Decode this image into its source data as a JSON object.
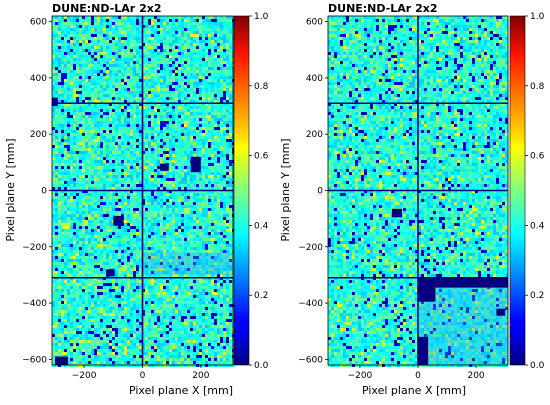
{
  "chart_data": [
    {
      "type": "heatmap",
      "title": "DUNE:ND-LAr 2x2",
      "xlabel": "Pixel plane X [mm]",
      "ylabel": "Pixel plane Y [mm]",
      "xlim": [
        -310,
        310
      ],
      "ylim": [
        -620,
        620
      ],
      "xticks": [
        -200,
        0,
        200
      ],
      "yticks": [
        -600,
        -400,
        -200,
        0,
        200,
        400,
        600
      ],
      "colorbar": {
        "min": 0.0,
        "max": 1.0,
        "ticks": [
          "0.0",
          "0.2",
          "0.4",
          "0.6",
          "0.8",
          "1.0"
        ],
        "colormap": "jet"
      },
      "dividers": {
        "x": [
          0
        ],
        "y": [
          -310,
          0,
          310
        ]
      },
      "inactive_regions": [
        [
          -310,
          -290,
          300,
          330
        ],
        [
          60,
          90,
          70,
          95
        ],
        [
          165,
          200,
          65,
          120
        ],
        [
          -100,
          -65,
          -125,
          -90
        ],
        [
          -125,
          -95,
          -305,
          -280
        ],
        [
          -300,
          -255,
          -620,
          -590
        ]
      ],
      "low_efficiency_regions": [
        [
          0,
          310,
          -300,
          -220
        ]
      ]
    },
    {
      "type": "heatmap",
      "title": "DUNE:ND-LAr 2x2",
      "xlabel": "Pixel plane X [mm]",
      "ylabel": "Pixel plane Y [mm]",
      "xlim": [
        -310,
        310
      ],
      "ylim": [
        -620,
        620
      ],
      "xticks": [
        -200,
        0,
        200
      ],
      "yticks": [
        -600,
        -400,
        -200,
        0,
        200,
        400,
        600
      ],
      "colorbar": {
        "min": 0.0,
        "max": 1.0,
        "ticks": [
          "0.0",
          "0.2",
          "0.4",
          "0.6",
          "0.8",
          "1.0"
        ],
        "colormap": "jet"
      },
      "dividers": {
        "x": [
          0
        ],
        "y": [
          -310,
          0,
          310
        ]
      },
      "inactive_regions": [
        [
          -90,
          -55,
          -95,
          -65
        ],
        [
          0,
          60,
          -395,
          -310
        ],
        [
          60,
          310,
          -345,
          -310
        ],
        [
          0,
          35,
          -620,
          -520
        ],
        [
          270,
          300,
          -445,
          -420
        ]
      ],
      "low_efficiency_regions": [
        [
          0,
          310,
          -620,
          -345
        ]
      ]
    }
  ]
}
